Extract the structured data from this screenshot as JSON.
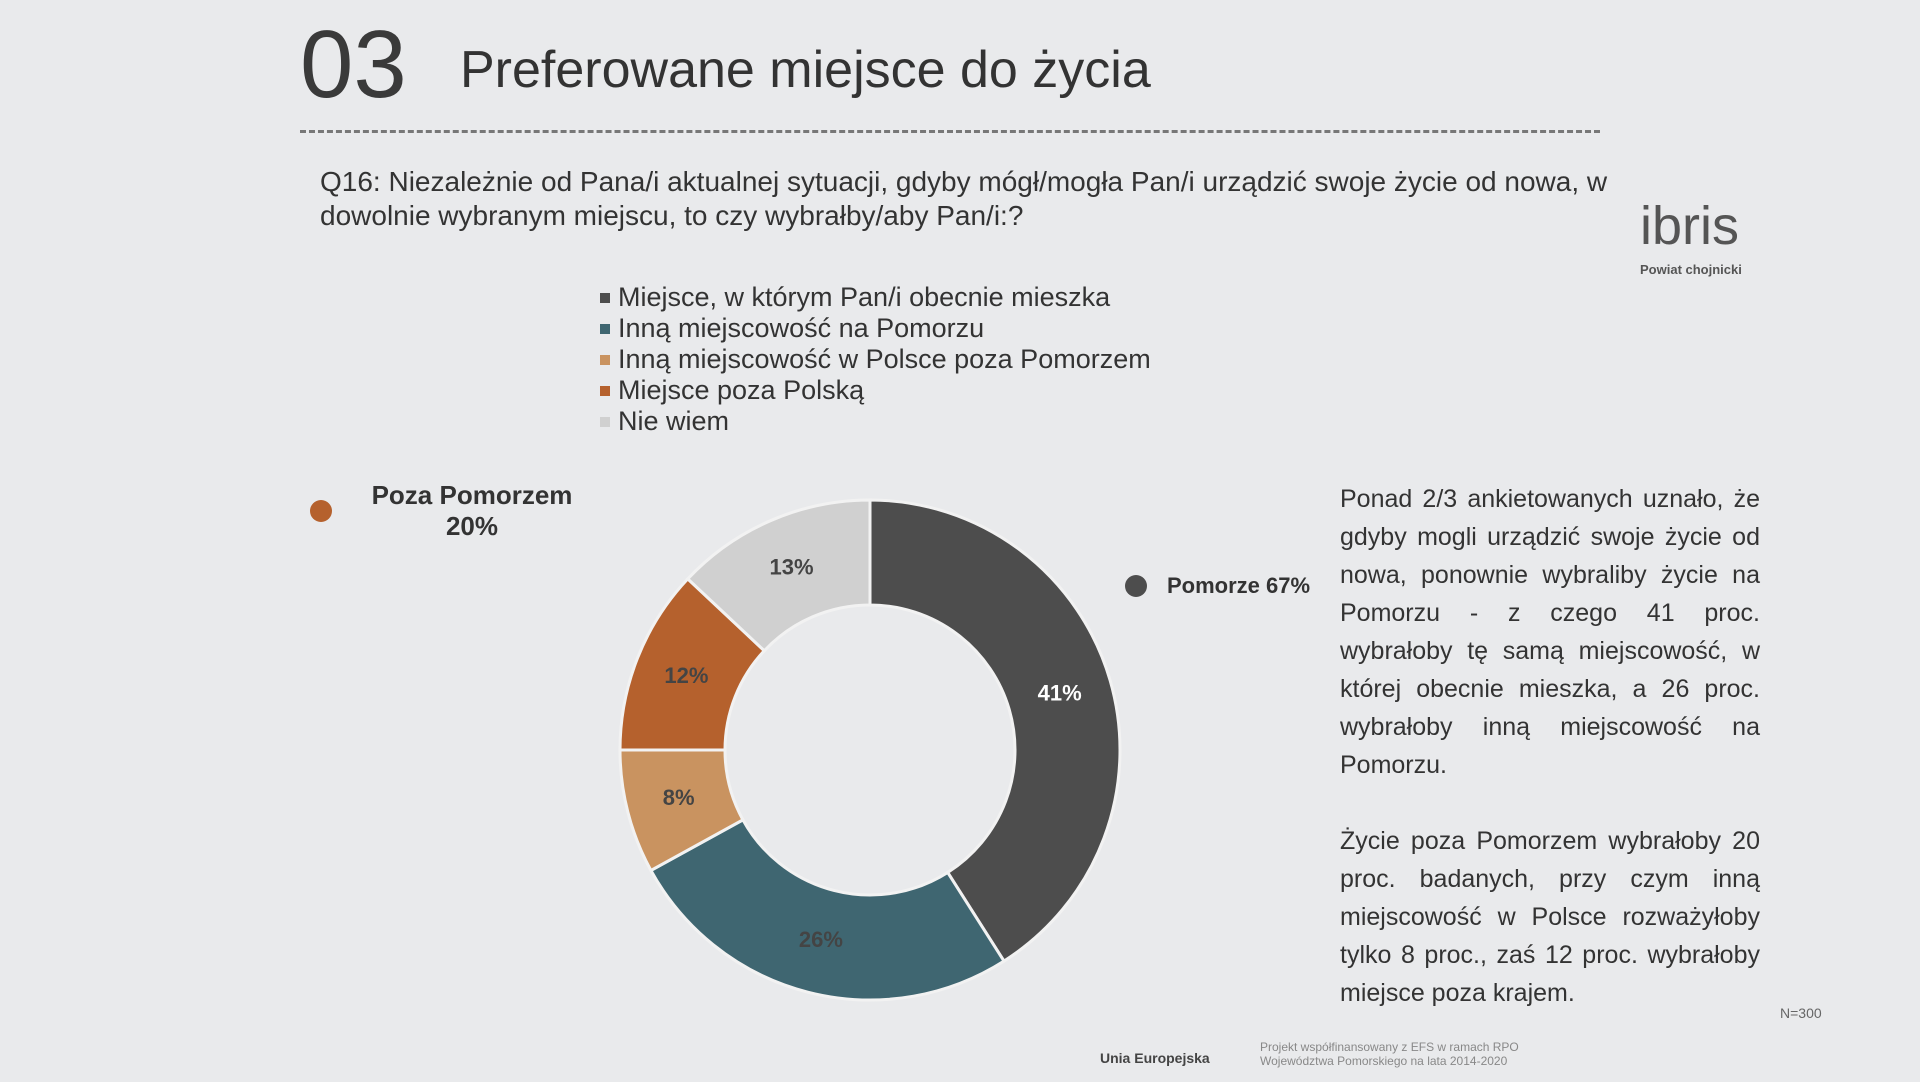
{
  "slide": {
    "number": "03",
    "title": "Preferowane miejsce do życia",
    "question": "Q16: Niezależnie od Pana/i aktualnej sytuacji, gdyby mógł/mogła Pan/i urządzić swoje życie od nowa, w dowolnie wybranym miejscu, to czy wybrałby/aby Pan/i:?",
    "logo": "ibris",
    "region": "Powiat chojnicki",
    "paragraphs": [
      "Ponad 2/3 ankietowanych uznało, że gdyby mogli urządzić swoje życie od nowa, ponownie wybraliby życie na Pomorzu - z czego 41 proc. wybrałoby tę samą miejscowość, w której obecnie mieszka, a 26 proc. wybrałoby inną miejscowość na Pomorzu.",
      "Życie poza Pomorzem wybrałoby 20 proc. badanych, przy czym inną miejscowość w Polsce rozważyłoby tylko 8 proc., zaś 12 proc. wybrałoby miejsce poza krajem."
    ],
    "sample": "N=300",
    "footer_eu": "Unia Europejska",
    "footer_project": "Projekt współfinansowany z EFS w ramach RPO Województwa Pomorskiego na lata 2014-2020"
  },
  "chart_data": {
    "type": "donut",
    "categories": [
      "Miejsce, w którym Pan/i obecnie mieszka",
      "Inną miejscowość na Pomorzu",
      "Inną miejscowość w Polsce poza Pomorzem",
      "Miejsce poza Polską",
      "Nie wiem"
    ],
    "values": [
      41,
      26,
      8,
      12,
      13
    ],
    "value_labels": [
      "41%",
      "26%",
      "8%",
      "12%",
      "13%"
    ],
    "colors": [
      "#4d4d4d",
      "#3f6671",
      "#c99360",
      "#b5612d",
      "#d0d0d0"
    ],
    "annotations": [
      {
        "text": "Poza Pomorzem 20%",
        "color": "#b5612d"
      },
      {
        "text": "Pomorze 67%",
        "color": "#4d4d4d"
      }
    ]
  }
}
